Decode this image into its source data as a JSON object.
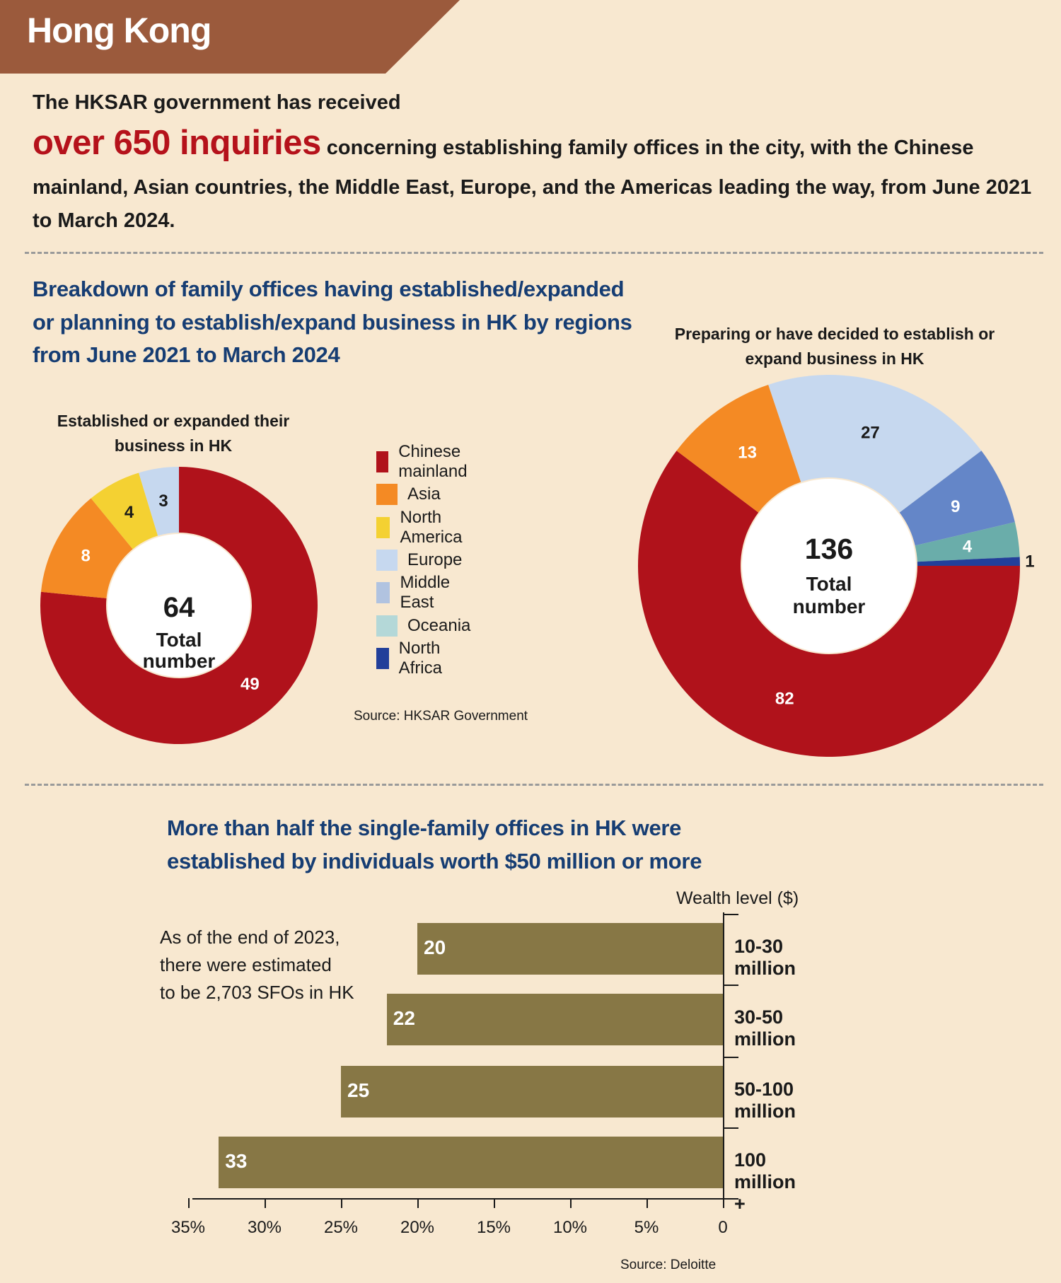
{
  "header": {
    "title": "Hong Kong"
  },
  "intro": {
    "line1": "The HKSAR government has received",
    "highlight": "over 650 inquiries",
    "rest": "concerning establishing family offices in the city, with the Chinese mainland, Asian countries, the Middle East, Europe, and the Americas leading the way, from June 2021 to March 2024."
  },
  "section1": {
    "title_lines": [
      "Breakdown of family offices having established/expanded",
      "or planning to establish/expand business in HK by regions",
      "from June 2021 to March 2024"
    ],
    "source": "Source: HKSAR Government"
  },
  "legend": [
    {
      "label": "Chinese mainland",
      "color": "#b0121b"
    },
    {
      "label": "Asia",
      "color": "#f48a24"
    },
    {
      "label": "North America",
      "color": "#f4d132"
    },
    {
      "label": "Europe",
      "color": "#c6d8ef"
    },
    {
      "label": "Middle East",
      "color": "#b1c3e0"
    },
    {
      "label": "Oceania",
      "color": "#b4d8d8"
    },
    {
      "label": "North Africa",
      "color": "#223f9a"
    }
  ],
  "section2": {
    "title_lines": [
      "More than half the single-family offices in HK were",
      "established by individuals worth $50 million or more"
    ],
    "note_lines": [
      "As of the end of 2023,",
      "there were estimated",
      "to be 2,703 SFOs in HK"
    ],
    "source": "Source: Deloitte"
  },
  "chart_data": [
    {
      "type": "pie",
      "title": "Established or expanded their business in HK",
      "center_value": "64",
      "center_label": "Total number",
      "slices": [
        {
          "label": "Chinese mainland",
          "value": 49,
          "color": "#b0121b"
        },
        {
          "label": "Asia",
          "value": 8,
          "color": "#f48a24"
        },
        {
          "label": "North America",
          "value": 4,
          "color": "#f4d132"
        },
        {
          "label": "Europe",
          "value": 3,
          "color": "#c6d8ef"
        }
      ]
    },
    {
      "type": "pie",
      "title": "Preparing or have decided to establish or expand business in HK",
      "center_value": "136",
      "center_label": "Total number",
      "slices": [
        {
          "label": "Chinese mainland",
          "value": 82,
          "color": "#b0121b"
        },
        {
          "label": "Asia",
          "value": 13,
          "color": "#f48a24"
        },
        {
          "label": "Europe",
          "value": 27,
          "color": "#c6d8ef"
        },
        {
          "label": "Middle East",
          "value": 9,
          "color": "#6486c8"
        },
        {
          "label": "Oceania",
          "value": 4,
          "color": "#6aadaa"
        },
        {
          "label": "North Africa",
          "value": 1,
          "color": "#223f9a"
        }
      ]
    },
    {
      "type": "bar",
      "orientation": "horizontal",
      "title": "More than half the single-family offices in HK were established by individuals worth $50 million or more",
      "ylabel": "Wealth level ($)",
      "categories": [
        "10-30 million",
        "30-50 million",
        "50-100 million",
        "100 million +"
      ],
      "values": [
        20,
        22,
        25,
        33
      ],
      "xlim": [
        0,
        35
      ],
      "xticks": [
        "35%",
        "30%",
        "25%",
        "20%",
        "15%",
        "10%",
        "5%",
        "0"
      ],
      "bar_color": "#877745"
    }
  ]
}
